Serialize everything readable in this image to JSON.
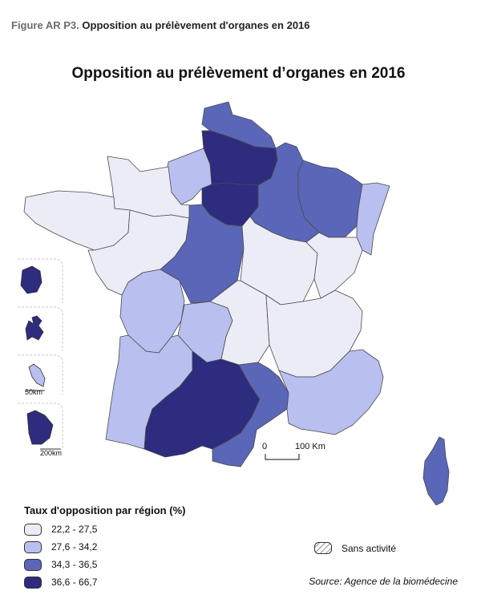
{
  "figure": {
    "number": "Figure AR P3.",
    "caption": "Opposition au prélèvement d'organes en 2016"
  },
  "map_title": "Opposition au prélèvement d’organes en 2016",
  "scale_bar": {
    "zero": "0",
    "distance": "100 Km"
  },
  "insets": {
    "guadeloupe_scale": "50km",
    "guyane_scale": "200km"
  },
  "legend": {
    "title": "Taux d'opposition par région (%)",
    "classes": [
      {
        "label": "22,2 - 27,5",
        "color": "#ececf7"
      },
      {
        "label": "27,6 - 34,2",
        "color": "#b9bfee"
      },
      {
        "label": "34,3 - 36,5",
        "color": "#5a66b8"
      },
      {
        "label": "36,6 - 66,7",
        "color": "#2d2c7e"
      }
    ],
    "no_activity": "Sans activité"
  },
  "regions": [
    {
      "name": "Nord",
      "class": 3
    },
    {
      "name": "Picardie",
      "class": 4
    },
    {
      "name": "Haute-Normandie",
      "class": 2
    },
    {
      "name": "Basse-Normandie",
      "class": 1
    },
    {
      "name": "Bretagne",
      "class": 1
    },
    {
      "name": "Île-de-France",
      "class": 4
    },
    {
      "name": "Champagne-Ardenne",
      "class": 3
    },
    {
      "name": "Lorraine",
      "class": 3
    },
    {
      "name": "Alsace",
      "class": 2
    },
    {
      "name": "Pays de la Loire",
      "class": 1
    },
    {
      "name": "Centre",
      "class": 3
    },
    {
      "name": "Bourgogne",
      "class": 1
    },
    {
      "name": "Franche-Comté",
      "class": 1
    },
    {
      "name": "Poitou-Charentes",
      "class": 2
    },
    {
      "name": "Limousin",
      "class": 2
    },
    {
      "name": "Auvergne",
      "class": 1
    },
    {
      "name": "Rhône-Alpes",
      "class": 1
    },
    {
      "name": "Aquitaine",
      "class": 2
    },
    {
      "name": "Midi-Pyrénées",
      "class": 4
    },
    {
      "name": "Languedoc-Roussillon",
      "class": 3
    },
    {
      "name": "Provence-Alpes-Côte d'Azur",
      "class": 2
    },
    {
      "name": "Corse",
      "class": 3
    },
    {
      "name": "La Réunion",
      "class": 4
    },
    {
      "name": "Guadeloupe",
      "class": 4
    },
    {
      "name": "Martinique",
      "class": 2
    },
    {
      "name": "Guyane",
      "class": 4
    }
  ],
  "source": "Source: Agence de la biomédecine"
}
